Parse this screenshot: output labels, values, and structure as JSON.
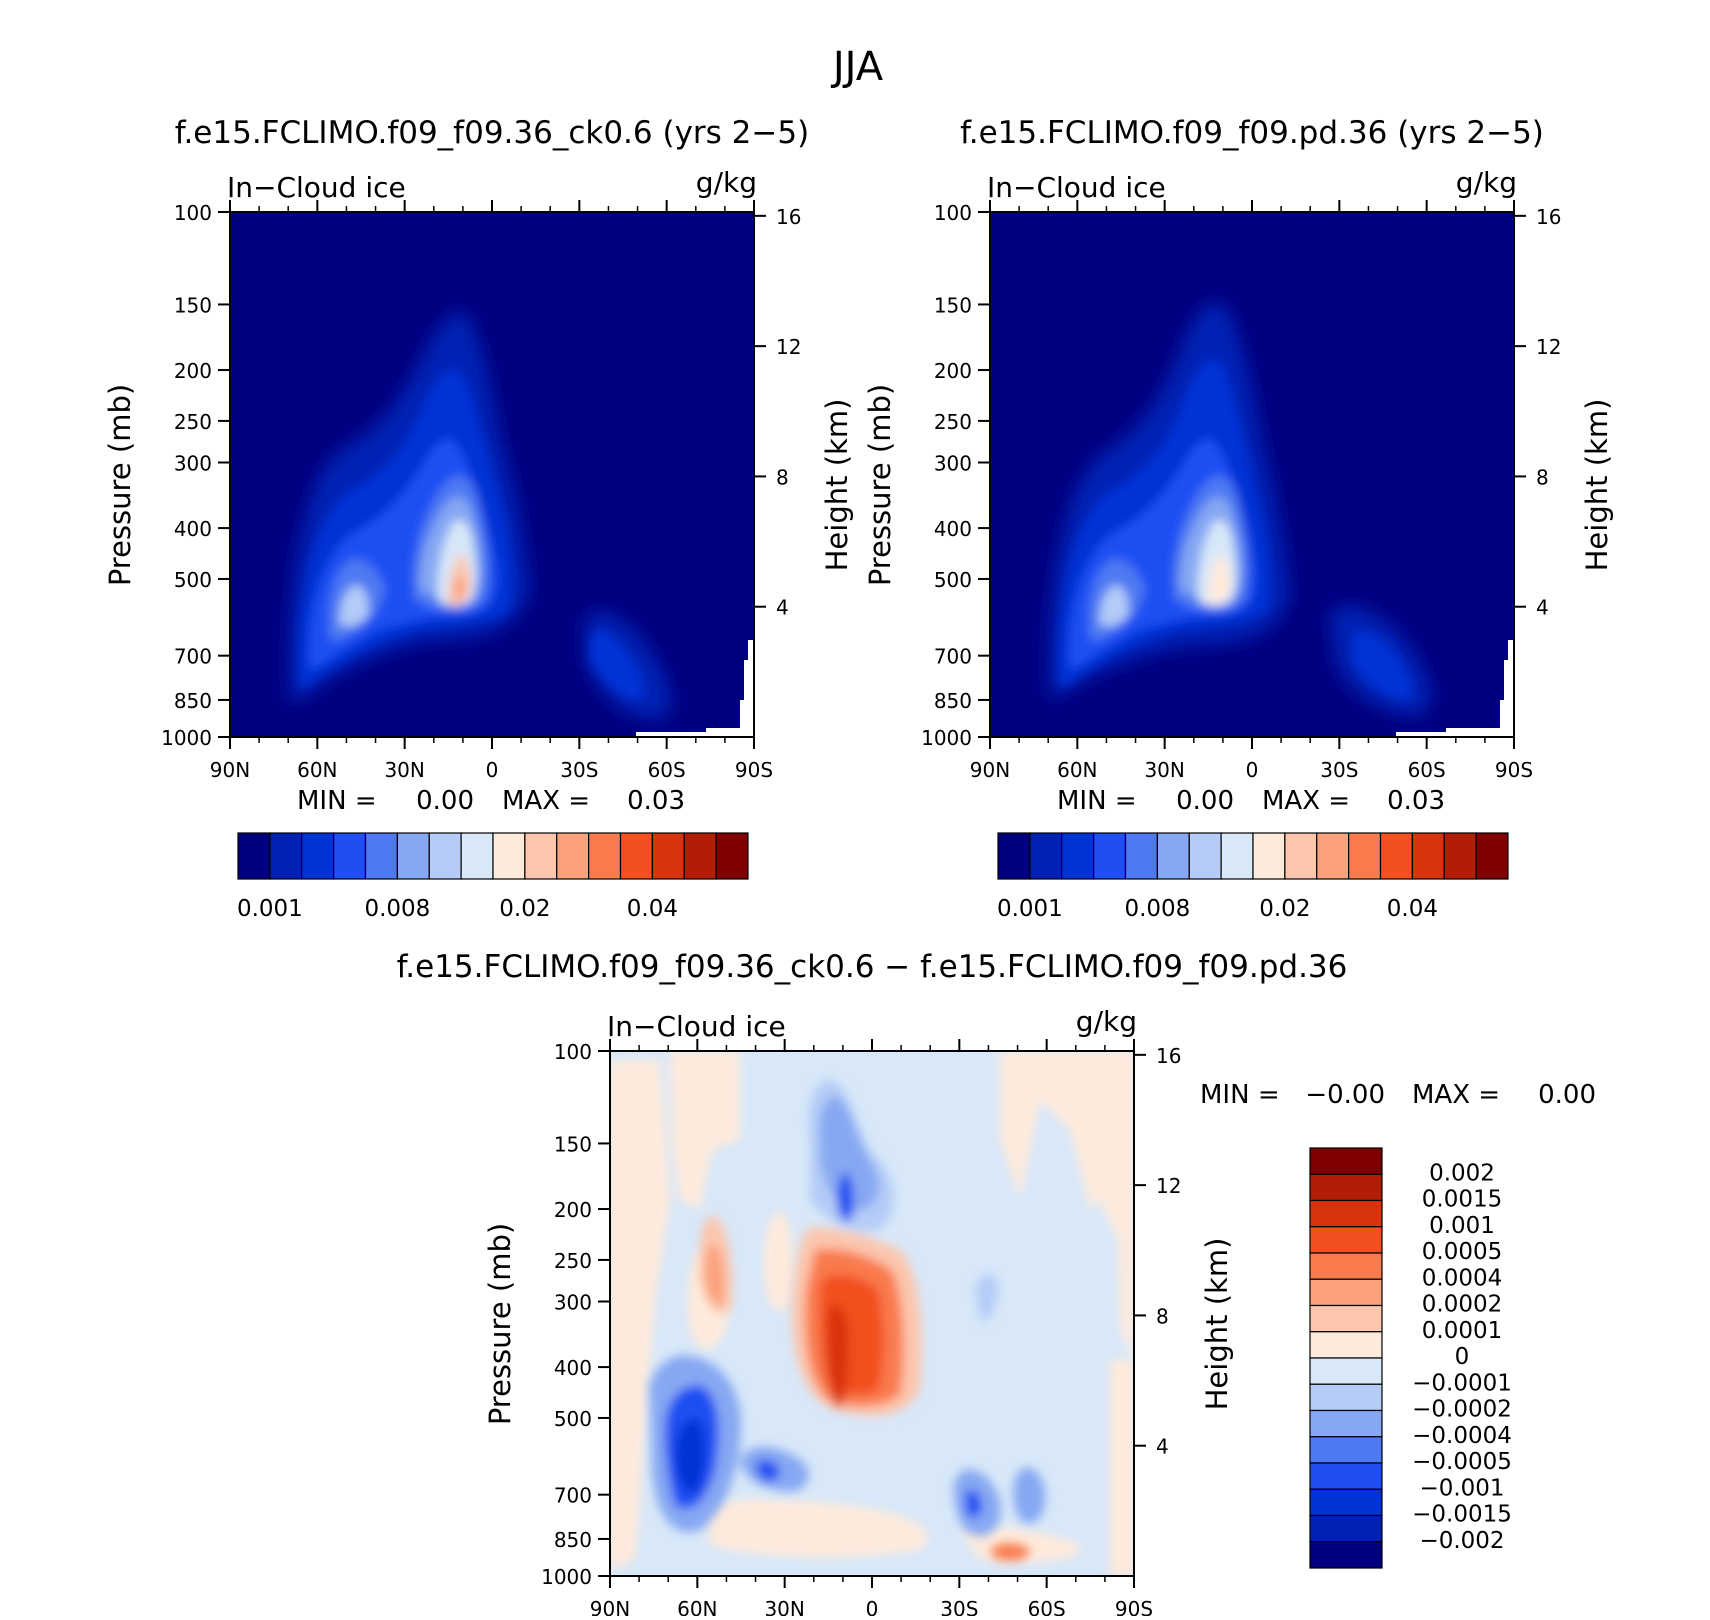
{
  "page_title": "JJA",
  "colors": {
    "background": "#000080",
    "seq": [
      "#000080",
      "#0021b4",
      "#0033d6",
      "#1f4ff2",
      "#4d79f2",
      "#86a8f2",
      "#b4ccf7",
      "#d8e8f9",
      "#feeadb",
      "#fcc6ad",
      "#fba17c",
      "#f97a4d",
      "#f2501e",
      "#d9330d",
      "#b31d06",
      "#7f0000"
    ],
    "diff": [
      "#7f0000",
      "#b31d06",
      "#d9330d",
      "#f2501e",
      "#f97a4d",
      "#fba17c",
      "#fcc6ad",
      "#feeadb",
      "#d8e8f9",
      "#b4ccf7",
      "#86a8f2",
      "#4d79f2",
      "#1f4ff2",
      "#0033d6",
      "#0021b4",
      "#000080"
    ]
  },
  "chart_data": [
    {
      "type": "contour",
      "title": "f.e15.FCLIMO.f09_f09.36_ck0.6 (yrs 2−5)",
      "left_label": "In−Cloud ice",
      "right_label": "g/kg",
      "ylabel": "Pressure (mb)",
      "y2label": "Height (km)",
      "xticks": [
        "90N",
        "60N",
        "30N",
        "0",
        "30S",
        "60S",
        "90S"
      ],
      "yticks": [
        "100",
        "150",
        "200",
        "250",
        "300",
        "400",
        "500",
        "700",
        "850",
        "1000"
      ],
      "y2ticks": [
        "16",
        "12",
        "8",
        "4"
      ],
      "min_label": "MIN =",
      "min_value": "0.00",
      "max_label": "MAX =",
      "max_value": "0.03",
      "colorbar_labels": [
        "0.001",
        "0.008",
        "0.02",
        "0.04"
      ]
    },
    {
      "type": "contour",
      "title": "f.e15.FCLIMO.f09_f09.pd.36 (yrs 2−5)",
      "left_label": "In−Cloud ice",
      "right_label": "g/kg",
      "ylabel": "Pressure (mb)",
      "y2label": "Height (km)",
      "xticks": [
        "90N",
        "60N",
        "30N",
        "0",
        "30S",
        "60S",
        "90S"
      ],
      "yticks": [
        "100",
        "150",
        "200",
        "250",
        "300",
        "400",
        "500",
        "700",
        "850",
        "1000"
      ],
      "y2ticks": [
        "16",
        "12",
        "8",
        "4"
      ],
      "min_label": "MIN =",
      "min_value": "0.00",
      "max_label": "MAX =",
      "max_value": "0.03",
      "colorbar_labels": [
        "0.001",
        "0.008",
        "0.02",
        "0.04"
      ]
    },
    {
      "type": "contour",
      "title": "f.e15.FCLIMO.f09_f09.36_ck0.6 − f.e15.FCLIMO.f09_f09.pd.36",
      "left_label": "In−Cloud ice",
      "right_label": "g/kg",
      "ylabel": "Pressure (mb)",
      "y2label": "Height (km)",
      "xticks": [
        "90N",
        "60N",
        "30N",
        "0",
        "30S",
        "60S",
        "90S"
      ],
      "yticks": [
        "100",
        "150",
        "200",
        "250",
        "300",
        "400",
        "500",
        "700",
        "850",
        "1000"
      ],
      "y2ticks": [
        "16",
        "12",
        "8",
        "4"
      ],
      "min_label": "MIN =",
      "min_value": "−0.00",
      "max_label": "MAX =",
      "max_value": "0.00",
      "colorbar_labels": [
        "0.002",
        "0.0015",
        "0.001",
        "0.0005",
        "0.0004",
        "0.0002",
        "0.0001",
        "0",
        "−0.0001",
        "−0.0002",
        "−0.0004",
        "−0.0005",
        "−0.001",
        "−0.0015",
        "−0.002"
      ]
    }
  ]
}
